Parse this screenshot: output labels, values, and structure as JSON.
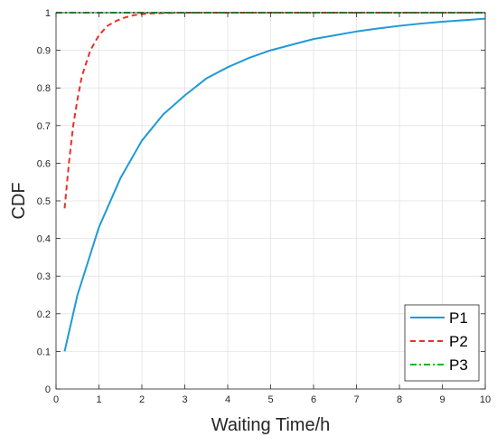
{
  "chart_data": {
    "type": "line",
    "xlabel": "Waiting Time/h",
    "ylabel": "CDF",
    "xlim": [
      0,
      10
    ],
    "ylim": [
      0,
      1
    ],
    "xticks": [
      0,
      1,
      2,
      3,
      4,
      5,
      6,
      7,
      8,
      9,
      10
    ],
    "yticks": [
      0,
      0.1,
      0.2,
      0.3,
      0.4,
      0.5,
      0.6,
      0.7,
      0.8,
      0.9,
      1
    ],
    "xtick_labels": [
      "0",
      "1",
      "2",
      "3",
      "4",
      "5",
      "6",
      "7",
      "8",
      "9",
      "10"
    ],
    "ytick_labels": [
      "0",
      "0.1",
      "0.2",
      "0.3",
      "0.4",
      "0.5",
      "0.6",
      "0.7",
      "0.8",
      "0.9",
      "1"
    ],
    "grid": true,
    "legend_position": "bottom-right",
    "series": [
      {
        "name": "P1",
        "color": "#1f9ad6",
        "style": "solid",
        "x": [
          0.2,
          0.5,
          1,
          1.5,
          2,
          2.5,
          3,
          3.5,
          4,
          4.5,
          5,
          5.5,
          6,
          6.5,
          7,
          7.5,
          8,
          8.5,
          9,
          9.5,
          10
        ],
        "y": [
          0.1,
          0.25,
          0.43,
          0.56,
          0.66,
          0.73,
          0.78,
          0.825,
          0.855,
          0.88,
          0.9,
          0.915,
          0.93,
          0.94,
          0.95,
          0.958,
          0.965,
          0.971,
          0.976,
          0.98,
          0.984
        ]
      },
      {
        "name": "P2",
        "color": "#e8312a",
        "style": "dashed",
        "x": [
          0.2,
          0.3,
          0.4,
          0.5,
          0.6,
          0.8,
          1,
          1.2,
          1.4,
          1.6,
          1.8,
          2,
          2.2,
          2.5,
          3,
          4,
          5,
          6,
          7,
          8,
          9,
          10
        ],
        "y": [
          0.48,
          0.6,
          0.7,
          0.77,
          0.83,
          0.9,
          0.94,
          0.965,
          0.978,
          0.987,
          0.993,
          0.996,
          0.998,
          0.999,
          1,
          1,
          1,
          1,
          1,
          1,
          1,
          1
        ]
      },
      {
        "name": "P3",
        "color": "#19b52a",
        "style": "dashdot",
        "x": [
          0,
          1,
          2,
          3,
          4,
          5,
          6,
          7,
          8,
          9,
          10
        ],
        "y": [
          1,
          1,
          1,
          1,
          1,
          1,
          1,
          1,
          1,
          1,
          1
        ]
      }
    ]
  }
}
